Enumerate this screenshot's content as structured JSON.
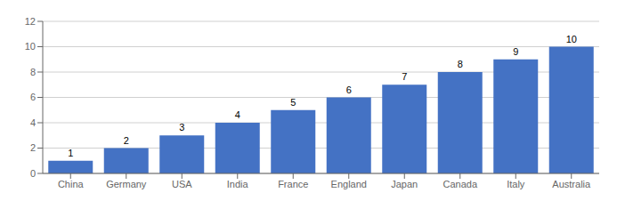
{
  "chart_data": {
    "type": "bar",
    "categories": [
      "China",
      "Germany",
      "USA",
      "India",
      "France",
      "England",
      "Japan",
      "Canada",
      "Italy",
      "Australia"
    ],
    "values": [
      1,
      2,
      3,
      4,
      5,
      6,
      7,
      8,
      9,
      10
    ],
    "color": "#4472C4",
    "ylim": [
      0,
      12
    ],
    "yticks": [
      0,
      2,
      4,
      6,
      8,
      10,
      12
    ],
    "grid": true,
    "data_labels": true
  }
}
